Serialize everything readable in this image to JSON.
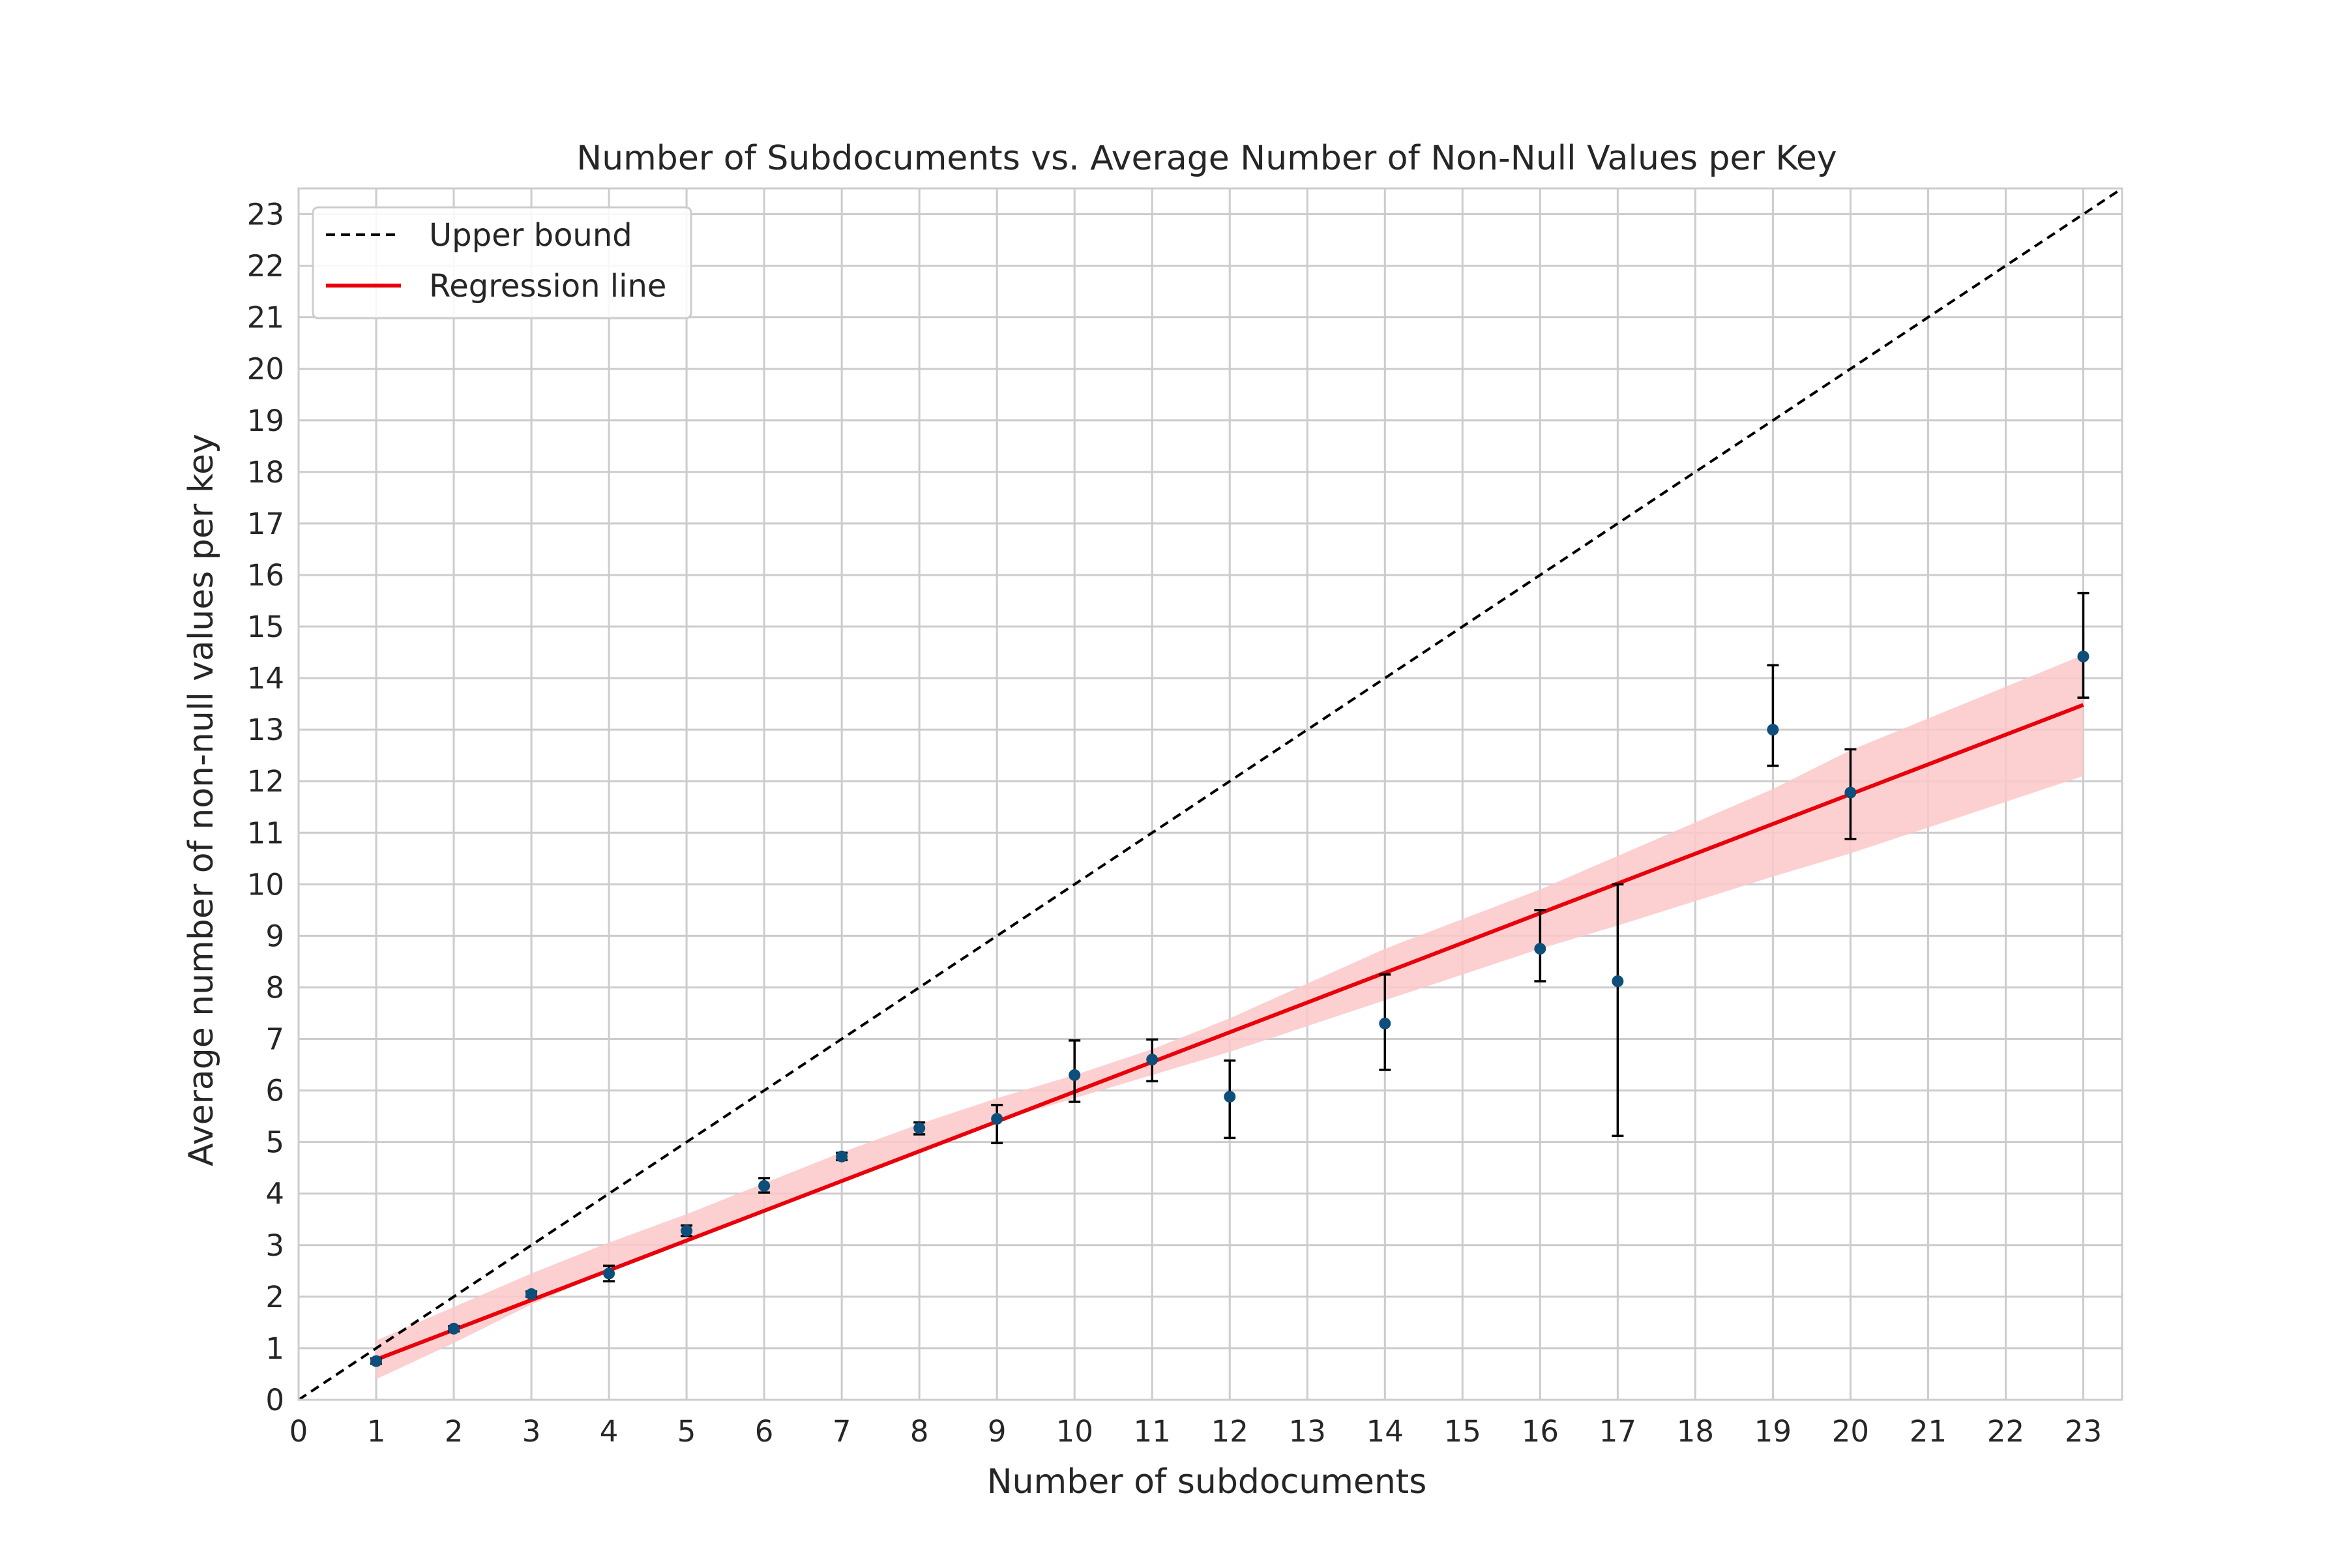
{
  "chart_data": {
    "type": "scatter",
    "title": "Number of Subdocuments vs. Average Number of Non-Null Values per Key",
    "xlabel": "Number of subdocuments",
    "ylabel": "Average number of non-null values per key",
    "xlim": [
      0,
      23.5
    ],
    "ylim": [
      0,
      23.5
    ],
    "xticks": [
      "0",
      "1",
      "2",
      "3",
      "4",
      "5",
      "6",
      "7",
      "8",
      "9",
      "10",
      "11",
      "12",
      "13",
      "14",
      "15",
      "16",
      "17",
      "18",
      "19",
      "20",
      "21",
      "22",
      "23"
    ],
    "yticks": [
      "0",
      "1",
      "2",
      "3",
      "4",
      "5",
      "6",
      "7",
      "8",
      "9",
      "10",
      "11",
      "12",
      "13",
      "14",
      "15",
      "16",
      "17",
      "18",
      "19",
      "20",
      "21",
      "22",
      "23"
    ],
    "grid": true,
    "legend_position": "top-left",
    "legend": [
      {
        "label": "Upper bound",
        "style": "dashed",
        "color": "#000000"
      },
      {
        "label": "Regression line",
        "style": "solid",
        "color": "#e8000b"
      }
    ],
    "points": [
      {
        "x": 1,
        "y": 0.75,
        "lo": 0.7,
        "hi": 0.8
      },
      {
        "x": 2,
        "y": 1.38,
        "lo": 1.33,
        "hi": 1.43
      },
      {
        "x": 3,
        "y": 2.05,
        "lo": 2.0,
        "hi": 2.1
      },
      {
        "x": 4,
        "y": 2.45,
        "lo": 2.3,
        "hi": 2.6
      },
      {
        "x": 5,
        "y": 3.28,
        "lo": 3.18,
        "hi": 3.38
      },
      {
        "x": 6,
        "y": 4.15,
        "lo": 4.02,
        "hi": 4.3
      },
      {
        "x": 7,
        "y": 4.72,
        "lo": 4.65,
        "hi": 4.79
      },
      {
        "x": 8,
        "y": 5.27,
        "lo": 5.15,
        "hi": 5.38
      },
      {
        "x": 9,
        "y": 5.45,
        "lo": 4.98,
        "hi": 5.72
      },
      {
        "x": 10,
        "y": 6.3,
        "lo": 5.78,
        "hi": 6.97
      },
      {
        "x": 11,
        "y": 6.6,
        "lo": 6.18,
        "hi": 6.99
      },
      {
        "x": 12,
        "y": 5.88,
        "lo": 5.08,
        "hi": 6.58
      },
      {
        "x": 14,
        "y": 7.3,
        "lo": 6.4,
        "hi": 8.25
      },
      {
        "x": 16,
        "y": 8.75,
        "lo": 8.12,
        "hi": 9.5
      },
      {
        "x": 17,
        "y": 8.12,
        "lo": 5.12,
        "hi": 10.0
      },
      {
        "x": 19,
        "y": 13.0,
        "lo": 12.3,
        "hi": 14.25
      },
      {
        "x": 20,
        "y": 11.78,
        "lo": 10.88,
        "hi": 12.62
      },
      {
        "x": 23,
        "y": 14.42,
        "lo": 13.62,
        "hi": 15.65
      }
    ],
    "upper_bound": {
      "x": [
        0,
        23.5
      ],
      "y": [
        0,
        23.5
      ]
    },
    "regression": {
      "x": [
        1,
        23
      ],
      "y": [
        0.78,
        13.48
      ]
    },
    "confidence_band": {
      "x": [
        1,
        2,
        3,
        4,
        5,
        6,
        7,
        8,
        9,
        10,
        11,
        12,
        14,
        16,
        17,
        19,
        20,
        23
      ],
      "lower": [
        0.4,
        1.1,
        1.85,
        2.5,
        3.1,
        3.65,
        4.25,
        4.85,
        5.4,
        5.85,
        6.3,
        6.75,
        7.75,
        8.75,
        9.2,
        10.15,
        10.6,
        12.1
      ],
      "upper": [
        1.15,
        1.8,
        2.45,
        3.05,
        3.6,
        4.2,
        4.8,
        5.35,
        5.85,
        6.3,
        6.8,
        7.4,
        8.75,
        9.9,
        10.55,
        11.85,
        12.6,
        14.45
      ]
    },
    "colors": {
      "points": "#0d4e7a",
      "errorbars": "#000000",
      "regression": "#e8000b",
      "band": "#fbc8c9",
      "grid": "#cccccc",
      "upper_bound": "#000000"
    }
  }
}
